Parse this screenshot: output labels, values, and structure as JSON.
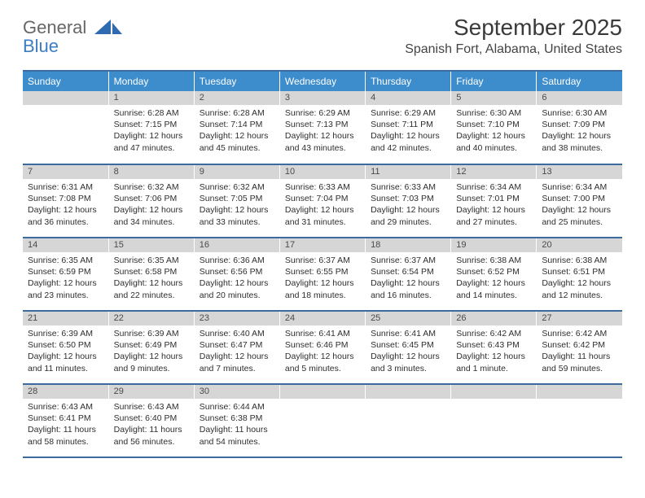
{
  "logo": {
    "line1": "General",
    "line2": "Blue"
  },
  "title": "September 2025",
  "location": "Spanish Fort, Alabama, United States",
  "colors": {
    "header_bg": "#3d8ccb",
    "header_text": "#ffffff",
    "daynum_bg": "#d6d6d6",
    "rule": "#3d6ba0",
    "logo_gray": "#666666",
    "logo_blue": "#3d7cc3"
  },
  "day_headers": [
    "Sunday",
    "Monday",
    "Tuesday",
    "Wednesday",
    "Thursday",
    "Friday",
    "Saturday"
  ],
  "start_offset": 1,
  "days": [
    {
      "n": 1,
      "sunrise": "6:28 AM",
      "sunset": "7:15 PM",
      "daylight": "12 hours and 47 minutes."
    },
    {
      "n": 2,
      "sunrise": "6:28 AM",
      "sunset": "7:14 PM",
      "daylight": "12 hours and 45 minutes."
    },
    {
      "n": 3,
      "sunrise": "6:29 AM",
      "sunset": "7:13 PM",
      "daylight": "12 hours and 43 minutes."
    },
    {
      "n": 4,
      "sunrise": "6:29 AM",
      "sunset": "7:11 PM",
      "daylight": "12 hours and 42 minutes."
    },
    {
      "n": 5,
      "sunrise": "6:30 AM",
      "sunset": "7:10 PM",
      "daylight": "12 hours and 40 minutes."
    },
    {
      "n": 6,
      "sunrise": "6:30 AM",
      "sunset": "7:09 PM",
      "daylight": "12 hours and 38 minutes."
    },
    {
      "n": 7,
      "sunrise": "6:31 AM",
      "sunset": "7:08 PM",
      "daylight": "12 hours and 36 minutes."
    },
    {
      "n": 8,
      "sunrise": "6:32 AM",
      "sunset": "7:06 PM",
      "daylight": "12 hours and 34 minutes."
    },
    {
      "n": 9,
      "sunrise": "6:32 AM",
      "sunset": "7:05 PM",
      "daylight": "12 hours and 33 minutes."
    },
    {
      "n": 10,
      "sunrise": "6:33 AM",
      "sunset": "7:04 PM",
      "daylight": "12 hours and 31 minutes."
    },
    {
      "n": 11,
      "sunrise": "6:33 AM",
      "sunset": "7:03 PM",
      "daylight": "12 hours and 29 minutes."
    },
    {
      "n": 12,
      "sunrise": "6:34 AM",
      "sunset": "7:01 PM",
      "daylight": "12 hours and 27 minutes."
    },
    {
      "n": 13,
      "sunrise": "6:34 AM",
      "sunset": "7:00 PM",
      "daylight": "12 hours and 25 minutes."
    },
    {
      "n": 14,
      "sunrise": "6:35 AM",
      "sunset": "6:59 PM",
      "daylight": "12 hours and 23 minutes."
    },
    {
      "n": 15,
      "sunrise": "6:35 AM",
      "sunset": "6:58 PM",
      "daylight": "12 hours and 22 minutes."
    },
    {
      "n": 16,
      "sunrise": "6:36 AM",
      "sunset": "6:56 PM",
      "daylight": "12 hours and 20 minutes."
    },
    {
      "n": 17,
      "sunrise": "6:37 AM",
      "sunset": "6:55 PM",
      "daylight": "12 hours and 18 minutes."
    },
    {
      "n": 18,
      "sunrise": "6:37 AM",
      "sunset": "6:54 PM",
      "daylight": "12 hours and 16 minutes."
    },
    {
      "n": 19,
      "sunrise": "6:38 AM",
      "sunset": "6:52 PM",
      "daylight": "12 hours and 14 minutes."
    },
    {
      "n": 20,
      "sunrise": "6:38 AM",
      "sunset": "6:51 PM",
      "daylight": "12 hours and 12 minutes."
    },
    {
      "n": 21,
      "sunrise": "6:39 AM",
      "sunset": "6:50 PM",
      "daylight": "12 hours and 11 minutes."
    },
    {
      "n": 22,
      "sunrise": "6:39 AM",
      "sunset": "6:49 PM",
      "daylight": "12 hours and 9 minutes."
    },
    {
      "n": 23,
      "sunrise": "6:40 AM",
      "sunset": "6:47 PM",
      "daylight": "12 hours and 7 minutes."
    },
    {
      "n": 24,
      "sunrise": "6:41 AM",
      "sunset": "6:46 PM",
      "daylight": "12 hours and 5 minutes."
    },
    {
      "n": 25,
      "sunrise": "6:41 AM",
      "sunset": "6:45 PM",
      "daylight": "12 hours and 3 minutes."
    },
    {
      "n": 26,
      "sunrise": "6:42 AM",
      "sunset": "6:43 PM",
      "daylight": "12 hours and 1 minute."
    },
    {
      "n": 27,
      "sunrise": "6:42 AM",
      "sunset": "6:42 PM",
      "daylight": "11 hours and 59 minutes."
    },
    {
      "n": 28,
      "sunrise": "6:43 AM",
      "sunset": "6:41 PM",
      "daylight": "11 hours and 58 minutes."
    },
    {
      "n": 29,
      "sunrise": "6:43 AM",
      "sunset": "6:40 PM",
      "daylight": "11 hours and 56 minutes."
    },
    {
      "n": 30,
      "sunrise": "6:44 AM",
      "sunset": "6:38 PM",
      "daylight": "11 hours and 54 minutes."
    }
  ],
  "labels": {
    "sunrise": "Sunrise:",
    "sunset": "Sunset:",
    "daylight": "Daylight:"
  }
}
